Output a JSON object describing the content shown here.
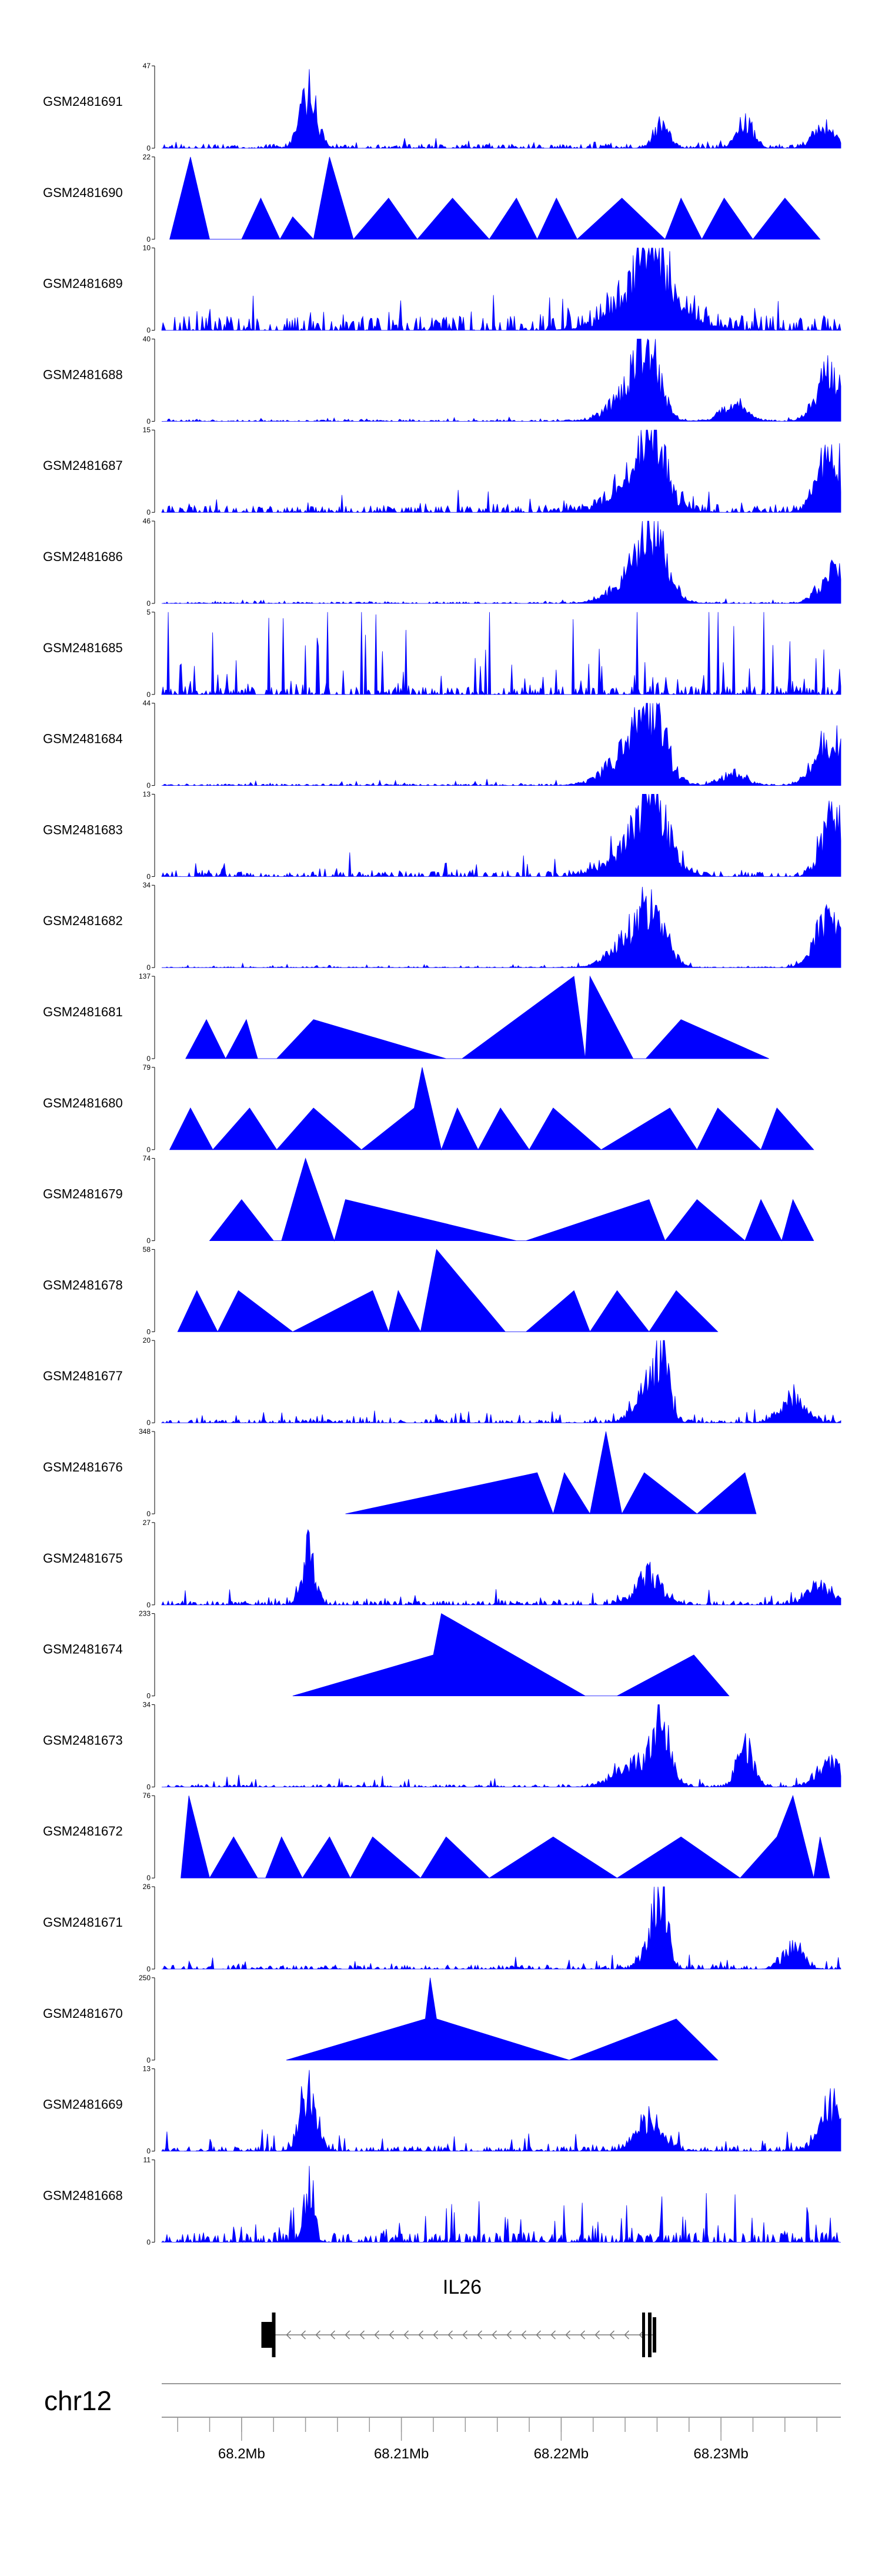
{
  "chart_data": {
    "type": "area",
    "title": "",
    "chromosome": "chr12",
    "x_range_mb": [
      68.195,
      68.2375
    ],
    "genome_axis": {
      "ticks_mb": [
        68.2,
        68.21,
        68.22,
        68.23
      ],
      "tick_labels": [
        "68.2Mb",
        "68.21Mb",
        "68.22Mb",
        "68.23Mb"
      ]
    },
    "gene": {
      "name": "IL26",
      "start_mb": 68.2019,
      "end_mb": 68.2258,
      "strand": "-"
    },
    "tracks": [
      {
        "name": "GSM2481691",
        "ymax": 47,
        "shape": "dense",
        "seed": 11,
        "base": 0.05,
        "noise": 0.08,
        "peaks": [
          [
            68.2042,
            47,
            0.5
          ],
          [
            68.2263,
            18,
            0.5
          ],
          [
            68.2315,
            22,
            0.5
          ],
          [
            68.2365,
            17,
            0.7
          ]
        ]
      },
      {
        "name": "GSM2481690",
        "ymax": 22,
        "shape": "sparse",
        "seed": 7,
        "points": [
          [
            68.1955,
            0
          ],
          [
            68.1968,
            22
          ],
          [
            68.198,
            0
          ],
          [
            68.2,
            0
          ],
          [
            68.2012,
            11
          ],
          [
            68.2024,
            0
          ],
          [
            68.2032,
            6
          ],
          [
            68.2045,
            0
          ],
          [
            68.2055,
            22
          ],
          [
            68.207,
            0
          ],
          [
            68.2092,
            11
          ],
          [
            68.211,
            0
          ],
          [
            68.2132,
            11
          ],
          [
            68.2155,
            0
          ],
          [
            68.2172,
            11
          ],
          [
            68.2185,
            0
          ],
          [
            68.2197,
            11
          ],
          [
            68.221,
            0
          ],
          [
            68.2238,
            11
          ],
          [
            68.2265,
            0
          ],
          [
            68.2275,
            11
          ],
          [
            68.2288,
            0
          ],
          [
            68.2302,
            11
          ],
          [
            68.232,
            0
          ],
          [
            68.234,
            11
          ],
          [
            68.2362,
            0
          ]
        ]
      },
      {
        "name": "GSM2481689",
        "ymax": 10,
        "shape": "dense",
        "seed": 23,
        "base": 0.18,
        "noise": 0.35,
        "peaks": [
          [
            68.2255,
            10,
            1.0
          ],
          [
            68.2255,
            5,
            2.0
          ]
        ]
      },
      {
        "name": "GSM2481688",
        "ymax": 40,
        "shape": "dense",
        "seed": 31,
        "base": 0.02,
        "noise": 0.05,
        "peaks": [
          [
            68.2245,
            25,
            1.2
          ],
          [
            68.2255,
            38,
            0.7
          ],
          [
            68.2308,
            10,
            0.8
          ],
          [
            68.2368,
            35,
            0.8
          ]
        ]
      },
      {
        "name": "GSM2481687",
        "ymax": 15,
        "shape": "dense",
        "seed": 41,
        "base": 0.08,
        "noise": 0.18,
        "peaks": [
          [
            68.2248,
            10,
            1.5
          ],
          [
            68.2258,
            15,
            0.6
          ],
          [
            68.2368,
            14,
            0.8
          ]
        ]
      },
      {
        "name": "GSM2481686",
        "ymax": 46,
        "shape": "dense",
        "seed": 53,
        "base": 0.02,
        "noise": 0.04,
        "peaks": [
          [
            68.2248,
            25,
            1.3
          ],
          [
            68.2258,
            42,
            0.8
          ],
          [
            68.237,
            25,
            0.8
          ]
        ]
      },
      {
        "name": "GSM2481685",
        "ymax": 5,
        "shape": "dense",
        "seed": 61,
        "base": 0.1,
        "noise": 0.9,
        "peaks": []
      },
      {
        "name": "GSM2481684",
        "ymax": 44,
        "shape": "dense",
        "seed": 71,
        "base": 0.02,
        "noise": 0.05,
        "peaks": [
          [
            68.2245,
            28,
            1.4
          ],
          [
            68.2258,
            40,
            0.8
          ],
          [
            68.2308,
            9,
            0.8
          ],
          [
            68.2368,
            38,
            0.9
          ]
        ]
      },
      {
        "name": "GSM2481683",
        "ymax": 13,
        "shape": "dense",
        "seed": 83,
        "base": 0.06,
        "noise": 0.2,
        "peaks": [
          [
            68.2248,
            8,
            1.5
          ],
          [
            68.2258,
            12,
            0.8
          ],
          [
            68.237,
            13,
            0.7
          ]
        ]
      },
      {
        "name": "GSM2481682",
        "ymax": 34,
        "shape": "dense",
        "seed": 97,
        "base": 0.01,
        "noise": 0.04,
        "peaks": [
          [
            68.2245,
            18,
            1.2
          ],
          [
            68.2258,
            28,
            0.8
          ],
          [
            68.2368,
            34,
            0.8
          ]
        ]
      },
      {
        "name": "GSM2481681",
        "ymax": 137,
        "shape": "sparse",
        "seed": 3,
        "points": [
          [
            68.1965,
            0
          ],
          [
            68.1978,
            65
          ],
          [
            68.199,
            0
          ],
          [
            68.2003,
            65
          ],
          [
            68.201,
            0
          ],
          [
            68.2022,
            0
          ],
          [
            68.2045,
            65
          ],
          [
            68.2128,
            0
          ],
          [
            68.2138,
            0
          ],
          [
            68.2208,
            137
          ],
          [
            68.2215,
            0
          ],
          [
            68.2218,
            137
          ],
          [
            68.2245,
            0
          ],
          [
            68.2253,
            0
          ],
          [
            68.2275,
            65
          ],
          [
            68.233,
            0
          ]
        ]
      },
      {
        "name": "GSM2481680",
        "ymax": 79,
        "shape": "sparse",
        "seed": 5,
        "points": [
          [
            68.1955,
            0
          ],
          [
            68.1968,
            40
          ],
          [
            68.1982,
            0
          ],
          [
            68.2005,
            40
          ],
          [
            68.2022,
            0
          ],
          [
            68.2045,
            40
          ],
          [
            68.2075,
            0
          ],
          [
            68.2108,
            40
          ],
          [
            68.2113,
            79
          ],
          [
            68.2125,
            0
          ],
          [
            68.2135,
            40
          ],
          [
            68.2148,
            0
          ],
          [
            68.2162,
            40
          ],
          [
            68.218,
            0
          ],
          [
            68.2195,
            40
          ],
          [
            68.2225,
            0
          ],
          [
            68.2268,
            40
          ],
          [
            68.2285,
            0
          ],
          [
            68.2298,
            40
          ],
          [
            68.2325,
            0
          ],
          [
            68.2335,
            40
          ],
          [
            68.2358,
            0
          ]
        ]
      },
      {
        "name": "GSM2481679",
        "ymax": 74,
        "shape": "sparse",
        "seed": 9,
        "points": [
          [
            68.198,
            0
          ],
          [
            68.2,
            37
          ],
          [
            68.202,
            0
          ],
          [
            68.2025,
            0
          ],
          [
            68.204,
            74
          ],
          [
            68.2058,
            0
          ],
          [
            68.2065,
            37
          ],
          [
            68.2172,
            0
          ],
          [
            68.2178,
            0
          ],
          [
            68.2255,
            37
          ],
          [
            68.2265,
            0
          ],
          [
            68.2285,
            37
          ],
          [
            68.2315,
            0
          ],
          [
            68.2325,
            37
          ],
          [
            68.2338,
            0
          ],
          [
            68.2345,
            37
          ],
          [
            68.2358,
            0
          ]
        ]
      },
      {
        "name": "GSM2481678",
        "ymax": 58,
        "shape": "sparse",
        "seed": 13,
        "points": [
          [
            68.196,
            0
          ],
          [
            68.1972,
            29
          ],
          [
            68.1985,
            0
          ],
          [
            68.1998,
            29
          ],
          [
            68.2032,
            0
          ],
          [
            68.2082,
            29
          ],
          [
            68.2092,
            0
          ],
          [
            68.2098,
            29
          ],
          [
            68.2112,
            0
          ],
          [
            68.2122,
            58
          ],
          [
            68.2165,
            0
          ],
          [
            68.2178,
            0
          ],
          [
            68.2208,
            29
          ],
          [
            68.2218,
            0
          ],
          [
            68.2235,
            29
          ],
          [
            68.2255,
            0
          ],
          [
            68.2272,
            29
          ],
          [
            68.2298,
            0
          ]
        ]
      },
      {
        "name": "GSM2481677",
        "ymax": 20,
        "shape": "dense",
        "seed": 17,
        "base": 0.04,
        "noise": 0.12,
        "peaks": [
          [
            68.2255,
            12,
            0.8
          ],
          [
            68.2263,
            20,
            0.4
          ],
          [
            68.2345,
            8,
            0.8
          ]
        ]
      },
      {
        "name": "GSM2481676",
        "ymax": 348,
        "shape": "sparse",
        "seed": 19,
        "points": [
          [
            68.2065,
            0
          ],
          [
            68.2185,
            174
          ],
          [
            68.2195,
            0
          ],
          [
            68.2202,
            174
          ],
          [
            68.2218,
            0
          ],
          [
            68.2228,
            348
          ],
          [
            68.2238,
            0
          ],
          [
            68.2252,
            174
          ],
          [
            68.2285,
            0
          ],
          [
            68.2315,
            174
          ],
          [
            68.2322,
            0
          ]
        ]
      },
      {
        "name": "GSM2481675",
        "ymax": 27,
        "shape": "dense",
        "seed": 29,
        "base": 0.05,
        "noise": 0.15,
        "peaks": [
          [
            68.2042,
            27,
            0.4
          ],
          [
            68.2255,
            15,
            0.8
          ],
          [
            68.2362,
            9,
            0.8
          ]
        ]
      },
      {
        "name": "GSM2481674",
        "ymax": 233,
        "shape": "sparse",
        "seed": 37,
        "points": [
          [
            68.2032,
            0
          ],
          [
            68.212,
            116
          ],
          [
            68.2125,
            233
          ],
          [
            68.2215,
            0
          ],
          [
            68.2235,
            0
          ],
          [
            68.2283,
            116
          ],
          [
            68.2305,
            0
          ]
        ]
      },
      {
        "name": "GSM2481673",
        "ymax": 34,
        "shape": "dense",
        "seed": 43,
        "base": 0.03,
        "noise": 0.1,
        "peaks": [
          [
            68.2248,
            15,
            1.2
          ],
          [
            68.2263,
            34,
            0.5
          ],
          [
            68.2315,
            24,
            0.5
          ],
          [
            68.2368,
            14,
            0.8
          ]
        ]
      },
      {
        "name": "GSM2481672",
        "ymax": 76,
        "shape": "sparse",
        "seed": 47,
        "points": [
          [
            68.1962,
            0
          ],
          [
            68.1967,
            76
          ],
          [
            68.198,
            0
          ],
          [
            68.1995,
            38
          ],
          [
            68.201,
            0
          ],
          [
            68.2015,
            0
          ],
          [
            68.2025,
            38
          ],
          [
            68.2038,
            0
          ],
          [
            68.2055,
            38
          ],
          [
            68.2068,
            0
          ],
          [
            68.2082,
            38
          ],
          [
            68.2112,
            0
          ],
          [
            68.2128,
            38
          ],
          [
            68.2155,
            0
          ],
          [
            68.2195,
            38
          ],
          [
            68.2235,
            0
          ],
          [
            68.2275,
            38
          ],
          [
            68.2312,
            0
          ],
          [
            68.2335,
            38
          ],
          [
            68.2345,
            76
          ],
          [
            68.2358,
            0
          ],
          [
            68.2362,
            38
          ],
          [
            68.2368,
            0
          ]
        ]
      },
      {
        "name": "GSM2481671",
        "ymax": 26,
        "shape": "dense",
        "seed": 59,
        "base": 0.05,
        "noise": 0.12,
        "peaks": [
          [
            68.2258,
            15,
            0.6
          ],
          [
            68.2263,
            26,
            0.4
          ],
          [
            68.2345,
            10,
            0.6
          ]
        ]
      },
      {
        "name": "GSM2481670",
        "ymax": 250,
        "shape": "sparse",
        "seed": 67,
        "points": [
          [
            68.2028,
            0
          ],
          [
            68.2115,
            125
          ],
          [
            68.2118,
            250
          ],
          [
            68.2122,
            125
          ],
          [
            68.2205,
            0
          ],
          [
            68.2272,
            125
          ],
          [
            68.2298,
            0
          ]
        ]
      },
      {
        "name": "GSM2481669",
        "ymax": 13,
        "shape": "dense",
        "seed": 73,
        "base": 0.06,
        "noise": 0.22,
        "peaks": [
          [
            68.2042,
            13,
            0.5
          ],
          [
            68.2255,
            7,
            0.8
          ],
          [
            68.2368,
            11,
            0.7
          ]
        ]
      },
      {
        "name": "GSM2481668",
        "ymax": 11,
        "shape": "dense",
        "seed": 79,
        "base": 0.12,
        "noise": 0.45,
        "peaks": [
          [
            68.2042,
            11,
            0.3
          ]
        ]
      }
    ]
  }
}
